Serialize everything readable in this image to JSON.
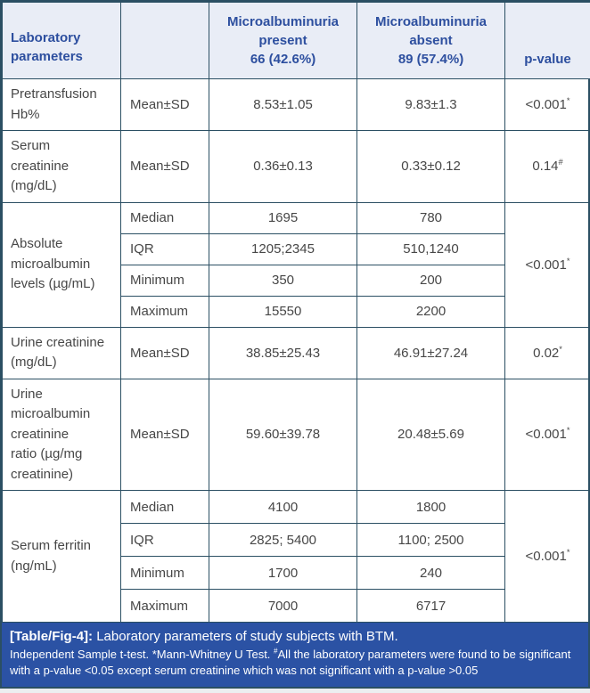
{
  "colors": {
    "header_bg": "#e9edf6",
    "header_text": "#2d4f9f",
    "border": "#2b4f63",
    "footer_bg": "#2b52a4",
    "body_text": "#474747",
    "page_bg": "#eceef0"
  },
  "table": {
    "header": {
      "laboratory_parameters": "Laboratory\nparameters",
      "stat_column": "",
      "microalbuminuria_present": "Microalbuminuria\npresent\n66 (42.6%)",
      "microalbuminuria_absent": "Microalbuminuria\nabsent\n89 (57.4%)",
      "p_value": "p-value"
    },
    "rows": {
      "pretransfusion_hb": {
        "param": "Pretransfusion\nHb%",
        "stat": "Mean±SD",
        "present": "8.53±1.05",
        "absent": "9.83±1.3",
        "p": "<0.001",
        "p_sup": "*"
      },
      "serum_creatinine": {
        "param": "Serum\ncreatinine\n(mg/dL)",
        "stat": "Mean±SD",
        "present": "0.36±0.13",
        "absent": "0.33±0.12",
        "p": "0.14",
        "p_sup": "#"
      },
      "absolute_microalbumin": {
        "param": "Absolute\nmicroalbumin\nlevels (µg/mL)",
        "sub": [
          {
            "stat": "Median",
            "present": "1695",
            "absent": "780"
          },
          {
            "stat": "IQR",
            "present": "1205;2345",
            "absent": "510,1240"
          },
          {
            "stat": "Minimum",
            "present": "350",
            "absent": "200"
          },
          {
            "stat": "Maximum",
            "present": "15550",
            "absent": "2200"
          }
        ],
        "p": "<0.001",
        "p_sup": "*"
      },
      "urine_creatinine": {
        "param": "Urine creatinine\n(mg/dL)",
        "stat": "Mean±SD",
        "present": "38.85±25.43",
        "absent": "46.91±27.24",
        "p": "0.02",
        "p_sup": "*"
      },
      "urine_microalbumin_ratio": {
        "param": "Urine\nmicroalbumin\ncreatinine\nratio (µg/mg\ncreatinine)",
        "stat": "Mean±SD",
        "present": "59.60±39.78",
        "absent": "20.48±5.69",
        "p": "<0.001",
        "p_sup": "*"
      },
      "serum_ferritin": {
        "param": "Serum ferritin\n(ng/mL)",
        "sub": [
          {
            "stat": "Median",
            "present": "4100",
            "absent": "1800"
          },
          {
            "stat": "IQR",
            "present": "2825; 5400",
            "absent": "1100; 2500"
          },
          {
            "stat": "Minimum",
            "present": "1700",
            "absent": "240"
          },
          {
            "stat": "Maximum",
            "present": "7000",
            "absent": "6717"
          }
        ],
        "p": "<0.001",
        "p_sup": "*"
      }
    }
  },
  "footer": {
    "caption_label": "[Table/Fig-4]:",
    "caption_text": " Laboratory parameters of study subjects with BTM.",
    "note_before": "Independent Sample t-test. *Mann-Whitney U Test. ",
    "note_sup": "#",
    "note_after": "All the laboratory parameters were found to be significant with a p-value <0.05 except serum creatinine which was not significant with a p-value >0.05"
  }
}
